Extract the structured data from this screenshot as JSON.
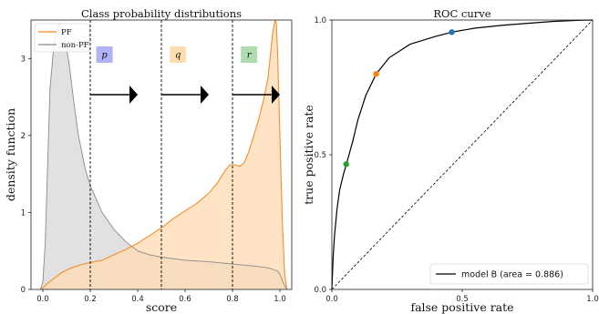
{
  "chart_data": [
    {
      "type": "area",
      "title": "Class probability distributions",
      "xlabel": "score",
      "ylabel": "density function",
      "xlim": [
        -0.05,
        1.05
      ],
      "ylim": [
        0,
        3.5
      ],
      "xticks": [
        "0.0",
        "0.2",
        "0.4",
        "0.6",
        "0.8",
        "1.0"
      ],
      "yticks": [
        "0",
        "1",
        "2",
        "3"
      ],
      "legend_position": "top-left",
      "colors": {
        "PF": "#f28e2b",
        "PF_fill": "#fdd9b0",
        "nonPF": "#8a8a8a",
        "nonPF_fill": "#dcdcdc"
      },
      "series": [
        {
          "name": "PF",
          "x": [
            -0.01,
            0.0,
            0.02,
            0.05,
            0.08,
            0.12,
            0.16,
            0.2,
            0.25,
            0.3,
            0.35,
            0.4,
            0.45,
            0.5,
            0.55,
            0.6,
            0.65,
            0.7,
            0.74,
            0.77,
            0.79,
            0.81,
            0.83,
            0.85,
            0.87,
            0.89,
            0.91,
            0.93,
            0.95,
            0.96,
            0.97,
            0.98,
            0.985,
            0.99,
            1.0,
            1.01,
            1.02,
            1.03
          ],
          "values": [
            0,
            0.02,
            0.08,
            0.15,
            0.22,
            0.28,
            0.32,
            0.35,
            0.38,
            0.45,
            0.52,
            0.6,
            0.7,
            0.8,
            0.92,
            1.02,
            1.12,
            1.25,
            1.4,
            1.55,
            1.62,
            1.62,
            1.6,
            1.65,
            1.8,
            2.0,
            2.2,
            2.45,
            2.75,
            3.05,
            3.35,
            3.5,
            3.45,
            3.1,
            2.0,
            0.9,
            0.2,
            0
          ]
        },
        {
          "name": "non-PF",
          "x": [
            -0.01,
            0.0,
            0.01,
            0.02,
            0.03,
            0.05,
            0.07,
            0.09,
            0.11,
            0.13,
            0.15,
            0.18,
            0.2,
            0.25,
            0.3,
            0.35,
            0.4,
            0.45,
            0.5,
            0.55,
            0.6,
            0.65,
            0.7,
            0.8,
            0.9,
            0.95,
            0.97,
            0.99,
            1.0,
            1.01,
            1.02,
            1.03
          ],
          "values": [
            0,
            0.1,
            0.6,
            1.6,
            2.6,
            3.3,
            3.45,
            3.3,
            2.95,
            2.45,
            2.0,
            1.55,
            1.35,
            1.0,
            0.78,
            0.62,
            0.5,
            0.45,
            0.42,
            0.4,
            0.38,
            0.37,
            0.36,
            0.33,
            0.3,
            0.28,
            0.26,
            0.24,
            0.2,
            0.12,
            0.05,
            0
          ]
        }
      ],
      "thresholds": [
        0.2,
        0.5,
        0.8
      ],
      "annotations": [
        {
          "label": "p",
          "x": 0.26,
          "color": "#a8a8f5"
        },
        {
          "label": "q",
          "x": 0.57,
          "color": "#fbd9a8"
        },
        {
          "label": "r",
          "x": 0.87,
          "color": "#a6d8a6"
        }
      ]
    },
    {
      "type": "line",
      "title": "ROC curve",
      "xlabel": "false positive rate",
      "ylabel": "true positive rate",
      "xlim": [
        0,
        1
      ],
      "ylim": [
        0,
        1
      ],
      "xticks": [
        "0.0",
        "0.5",
        "1.0"
      ],
      "yticks": [
        "0.0",
        "0.5",
        "1.0"
      ],
      "legend_position": "bottom-right",
      "series": [
        {
          "name": "model B (area = 0.886)",
          "x": [
            0,
            0.005,
            0.01,
            0.02,
            0.03,
            0.045,
            0.06,
            0.08,
            0.1,
            0.13,
            0.17,
            0.22,
            0.3,
            0.4,
            0.46,
            0.55,
            0.65,
            0.75,
            0.85,
            0.95,
            1.0
          ],
          "y": [
            0,
            0.12,
            0.2,
            0.3,
            0.37,
            0.43,
            0.48,
            0.55,
            0.63,
            0.72,
            0.8,
            0.86,
            0.91,
            0.94,
            0.955,
            0.97,
            0.98,
            0.988,
            0.995,
            0.999,
            1.0
          ]
        }
      ],
      "diagonal": true,
      "points": [
        {
          "x": 0.055,
          "y": 0.465,
          "color": "#2ca02c"
        },
        {
          "x": 0.17,
          "y": 0.8,
          "color": "#ff7f0e"
        },
        {
          "x": 0.46,
          "y": 0.955,
          "color": "#1f77b4"
        }
      ],
      "legend_label": "model B (area = 0.886)"
    }
  ]
}
